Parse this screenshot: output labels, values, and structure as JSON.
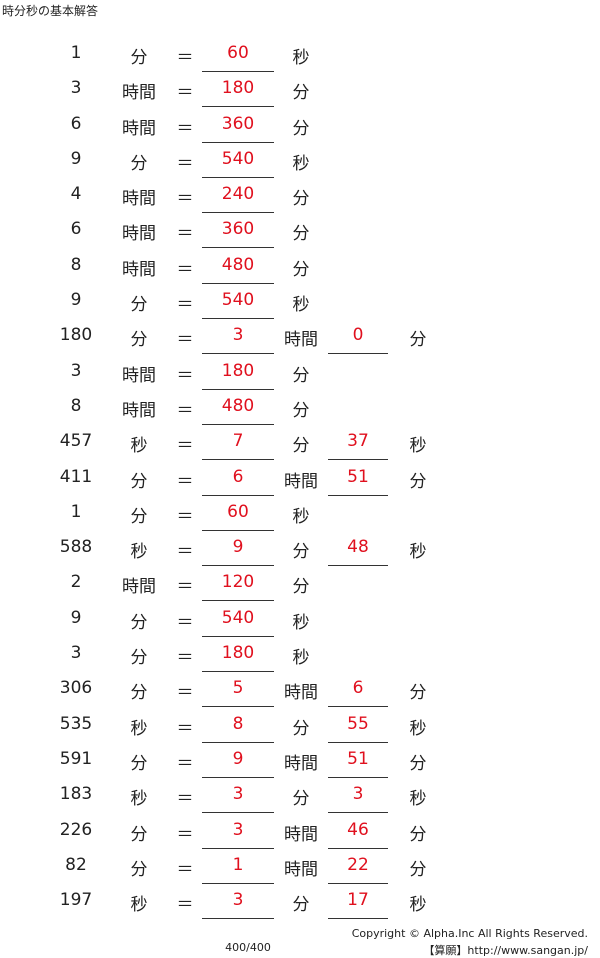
{
  "title": "時分秒の基本解答",
  "rows": [
    {
      "num": "1",
      "u1": "分",
      "eq": "＝",
      "a1": "60",
      "u2": "秒",
      "a2": "",
      "u3": ""
    },
    {
      "num": "3",
      "u1": "時間",
      "eq": "＝",
      "a1": "180",
      "u2": "分",
      "a2": "",
      "u3": ""
    },
    {
      "num": "6",
      "u1": "時間",
      "eq": "＝",
      "a1": "360",
      "u2": "分",
      "a2": "",
      "u3": ""
    },
    {
      "num": "9",
      "u1": "分",
      "eq": "＝",
      "a1": "540",
      "u2": "秒",
      "a2": "",
      "u3": ""
    },
    {
      "num": "4",
      "u1": "時間",
      "eq": "＝",
      "a1": "240",
      "u2": "分",
      "a2": "",
      "u3": ""
    },
    {
      "num": "6",
      "u1": "時間",
      "eq": "＝",
      "a1": "360",
      "u2": "分",
      "a2": "",
      "u3": ""
    },
    {
      "num": "8",
      "u1": "時間",
      "eq": "＝",
      "a1": "480",
      "u2": "分",
      "a2": "",
      "u3": ""
    },
    {
      "num": "9",
      "u1": "分",
      "eq": "＝",
      "a1": "540",
      "u2": "秒",
      "a2": "",
      "u3": ""
    },
    {
      "num": "180",
      "u1": "分",
      "eq": "＝",
      "a1": "3",
      "u2": "時間",
      "a2": "0",
      "u3": "分"
    },
    {
      "num": "3",
      "u1": "時間",
      "eq": "＝",
      "a1": "180",
      "u2": "分",
      "a2": "",
      "u3": ""
    },
    {
      "num": "8",
      "u1": "時間",
      "eq": "＝",
      "a1": "480",
      "u2": "分",
      "a2": "",
      "u3": ""
    },
    {
      "num": "457",
      "u1": "秒",
      "eq": "＝",
      "a1": "7",
      "u2": "分",
      "a2": "37",
      "u3": "秒"
    },
    {
      "num": "411",
      "u1": "分",
      "eq": "＝",
      "a1": "6",
      "u2": "時間",
      "a2": "51",
      "u3": "分"
    },
    {
      "num": "1",
      "u1": "分",
      "eq": "＝",
      "a1": "60",
      "u2": "秒",
      "a2": "",
      "u3": ""
    },
    {
      "num": "588",
      "u1": "秒",
      "eq": "＝",
      "a1": "9",
      "u2": "分",
      "a2": "48",
      "u3": "秒"
    },
    {
      "num": "2",
      "u1": "時間",
      "eq": "＝",
      "a1": "120",
      "u2": "分",
      "a2": "",
      "u3": ""
    },
    {
      "num": "9",
      "u1": "分",
      "eq": "＝",
      "a1": "540",
      "u2": "秒",
      "a2": "",
      "u3": ""
    },
    {
      "num": "3",
      "u1": "分",
      "eq": "＝",
      "a1": "180",
      "u2": "秒",
      "a2": "",
      "u3": ""
    },
    {
      "num": "306",
      "u1": "分",
      "eq": "＝",
      "a1": "5",
      "u2": "時間",
      "a2": "6",
      "u3": "分"
    },
    {
      "num": "535",
      "u1": "秒",
      "eq": "＝",
      "a1": "8",
      "u2": "分",
      "a2": "55",
      "u3": "秒"
    },
    {
      "num": "591",
      "u1": "分",
      "eq": "＝",
      "a1": "9",
      "u2": "時間",
      "a2": "51",
      "u3": "分"
    },
    {
      "num": "183",
      "u1": "秒",
      "eq": "＝",
      "a1": "3",
      "u2": "分",
      "a2": "3",
      "u3": "秒"
    },
    {
      "num": "226",
      "u1": "分",
      "eq": "＝",
      "a1": "3",
      "u2": "時間",
      "a2": "46",
      "u3": "分"
    },
    {
      "num": "82",
      "u1": "分",
      "eq": "＝",
      "a1": "1",
      "u2": "時間",
      "a2": "22",
      "u3": "分"
    },
    {
      "num": "197",
      "u1": "秒",
      "eq": "＝",
      "a1": "3",
      "u2": "分",
      "a2": "17",
      "u3": "秒"
    }
  ],
  "footer": {
    "copyright": "Copyright © Alpha.Inc All Rights Reserved.",
    "site": "【算願】http://www.sangan.jp/",
    "page": "400/400"
  },
  "colors": {
    "answer": "#e0101e",
    "text": "#222222"
  }
}
